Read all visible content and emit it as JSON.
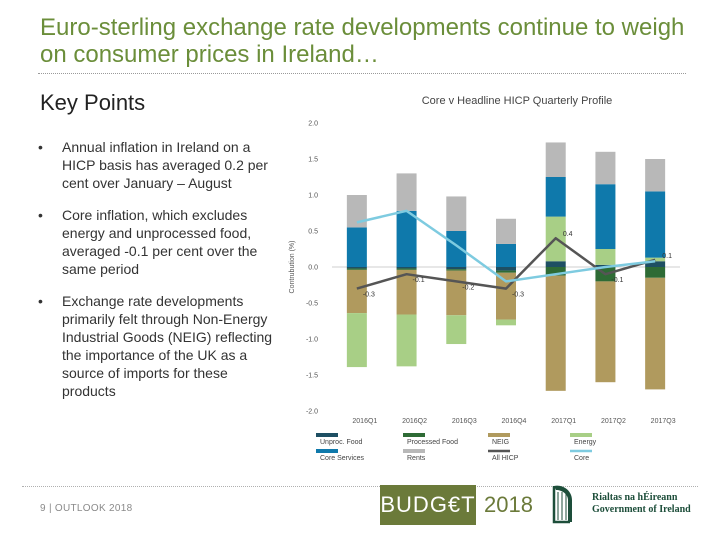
{
  "slide": {
    "title": "Euro-sterling exchange rate developments continue to weigh on consumer prices in Ireland…",
    "subtitle": "Key Points",
    "bullets": [
      "Annual inflation in Ireland on a HICP basis has averaged 0.2 per cent over January – August",
      "Core inflation, which excludes energy and unprocessed food, averaged -0.1 per cent over the same period",
      "Exchange rate developments primarily felt through Non-Energy Industrial Goods (NEIG) reflecting the importance of the UK as a source of imports for these products"
    ],
    "footer": "9 | OUTLOOK 2018",
    "budget_word": "BUDG€T",
    "budget_year": "2018",
    "gov_line1": "Rialtas na hÉireann",
    "gov_line2": "Government of Ireland"
  },
  "chart_data": {
    "type": "bar",
    "stacked": true,
    "title": "Core v Headline HICP Quarterly Profile",
    "ylabel": "Contrubution (%)",
    "xlabel": "",
    "ylim": [
      -2.0,
      2.0
    ],
    "yticks": [
      2.0,
      1.5,
      1.0,
      0.5,
      0.0,
      -0.5,
      -1.0,
      -1.5,
      -2.0
    ],
    "categories": [
      "2016Q1",
      "2016Q2",
      "2016Q3",
      "2016Q4",
      "2017Q1",
      "2017Q2",
      "2017Q3"
    ],
    "series": [
      {
        "name": "Unproc. Food",
        "color": "#1e4f63",
        "values": [
          -0.02,
          -0.02,
          -0.03,
          -0.05,
          0.08,
          0.03,
          0.08
        ]
      },
      {
        "name": "Processed Food",
        "color": "#2e6b35",
        "values": [
          -0.02,
          -0.02,
          -0.02,
          -0.03,
          -0.12,
          -0.2,
          -0.15
        ]
      },
      {
        "name": "NEIG",
        "color": "#b09a5e",
        "values": [
          -0.6,
          -0.62,
          -0.62,
          -0.65,
          -1.6,
          -1.4,
          -1.55
        ]
      },
      {
        "name": "Energy",
        "color": "#a8cf86",
        "values": [
          -0.75,
          -0.72,
          -0.4,
          -0.08,
          0.62,
          0.22,
          0.05
        ]
      },
      {
        "name": "Core Services",
        "color": "#0f79ab",
        "values": [
          0.55,
          0.78,
          0.5,
          0.32,
          0.55,
          0.9,
          0.92
        ]
      },
      {
        "name": "Rents",
        "color": "#b8b8b8",
        "values": [
          0.45,
          0.52,
          0.48,
          0.35,
          0.48,
          0.45,
          0.45
        ]
      }
    ],
    "lines": [
      {
        "name": "All HICP",
        "color": "#555555",
        "values": [
          -0.3,
          -0.1,
          -0.2,
          -0.3,
          0.4,
          -0.1,
          0.1
        ]
      },
      {
        "name": "Core",
        "color": "#7ecbe0",
        "values": [
          0.62,
          0.78,
          0.3,
          -0.2,
          -0.1,
          0.0,
          0.08
        ]
      }
    ],
    "data_labels": [
      "-0.3",
      "-0.1",
      "-0.2",
      "-0.3",
      "0.4",
      "-0.1",
      "0.1"
    ],
    "legend_position": "bottom"
  }
}
